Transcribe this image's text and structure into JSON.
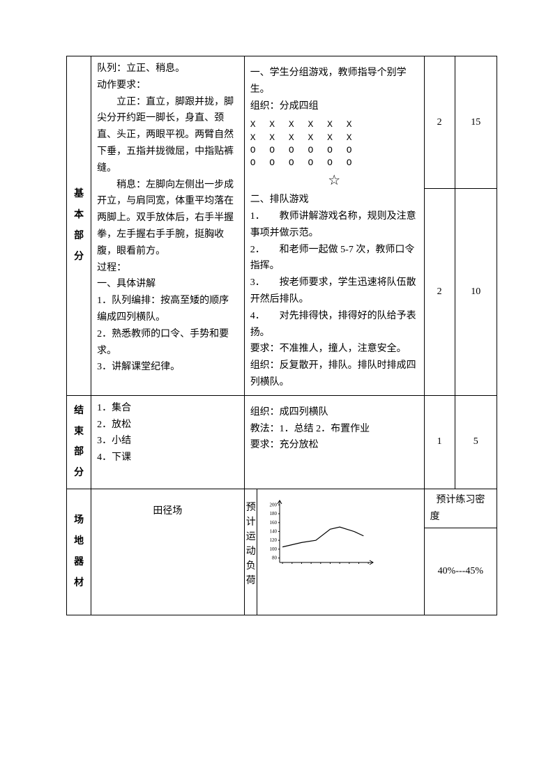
{
  "sections": {
    "basic": {
      "label": [
        "基",
        "本",
        "部",
        "分"
      ],
      "col1_parts": {
        "p1": "队列：立正、稍息。",
        "p2": "动作要求：",
        "p3": "立正：直立，脚跟并拢，脚尖分开约距一脚长，身直、颈直、头正，两眼平视。两臂自然下垂，五指并拢微屈，中指贴裤缝。",
        "p4": "稍息：左脚向左侧出一步成开立，与肩同宽，体重平均落在两脚上。双手放体后，右手半握拳，左手握右手手腕，挺胸收腹，眼看前方。",
        "p5": "过程：",
        "p6": "一、具体讲解",
        "p7": "1．队列编排：按高至矮的顺序编成四列横队。",
        "p8": "2．熟悉教师的口令、手势和要求。",
        "p9": "3．讲解课堂纪律。"
      },
      "col2_parts": {
        "p1": "一、学生分组游戏，教师指导个别学生。",
        "p2": "组织：分成四组",
        "formation_rows": [
          "X  X  X  X  X  X",
          "X  X  X  X  X  X",
          "O  O  O  O  O  O",
          "O  O  O  O  O  O"
        ],
        "star": "☆",
        "p3": "二、排队游戏",
        "p4": "1．　　教师讲解游戏名称，规则及注意事项并做示范。",
        "p5": "2．　　和老师一起做 5-7 次，教师口令指挥。",
        "p6": "3．　　按老师要求，学生迅速将队伍散开然后排队。",
        "p7": "4．　　对先排得快，排得好的队给予表扬。",
        "p8": "要求：不准推人，撞人，注意安全。",
        "p9": "组织：反复散开，排队。排队时排成四列横队。"
      },
      "nums": [
        "2",
        "2"
      ],
      "times": [
        "15",
        "10"
      ]
    },
    "end": {
      "label": [
        "结",
        "束",
        "部",
        "分"
      ],
      "col1_parts": {
        "p1": "1．集合",
        "p2": "2．放松",
        "p3": "3．小结",
        "p4": "4．下课"
      },
      "col2_parts": {
        "p1": "组织：成四列横队",
        "p2": "教法：1．总结 2．布置作业",
        "p3": "要求：充分放松"
      },
      "num": "1",
      "time": "5"
    },
    "venue": {
      "label": [
        "场",
        "地",
        "器",
        "材"
      ],
      "col1": "田径场",
      "chart_label": "预计运动负荷",
      "density_label": "预计练习密　　度",
      "density_value": "40%---45%",
      "chart": {
        "type": "line",
        "y_labels": [
          "200",
          "180",
          "160",
          "140",
          "120",
          "100",
          "80"
        ],
        "x_ticks": [
          0,
          1,
          2,
          3,
          4,
          5,
          6,
          7,
          8,
          9
        ],
        "points": [
          {
            "x": 0,
            "y": 105
          },
          {
            "x": 2,
            "y": 115
          },
          {
            "x": 3.5,
            "y": 120
          },
          {
            "x": 5,
            "y": 145
          },
          {
            "x": 6,
            "y": 150
          },
          {
            "x": 7.5,
            "y": 140
          },
          {
            "x": 8.5,
            "y": 130
          }
        ],
        "line_color": "#000000",
        "axis_color": "#000000",
        "background_color": "#ffffff",
        "ylim": [
          70,
          210
        ],
        "xlim": [
          -0.3,
          9.5
        ],
        "label_fontsize": 7,
        "width": 160,
        "height": 105
      }
    }
  }
}
